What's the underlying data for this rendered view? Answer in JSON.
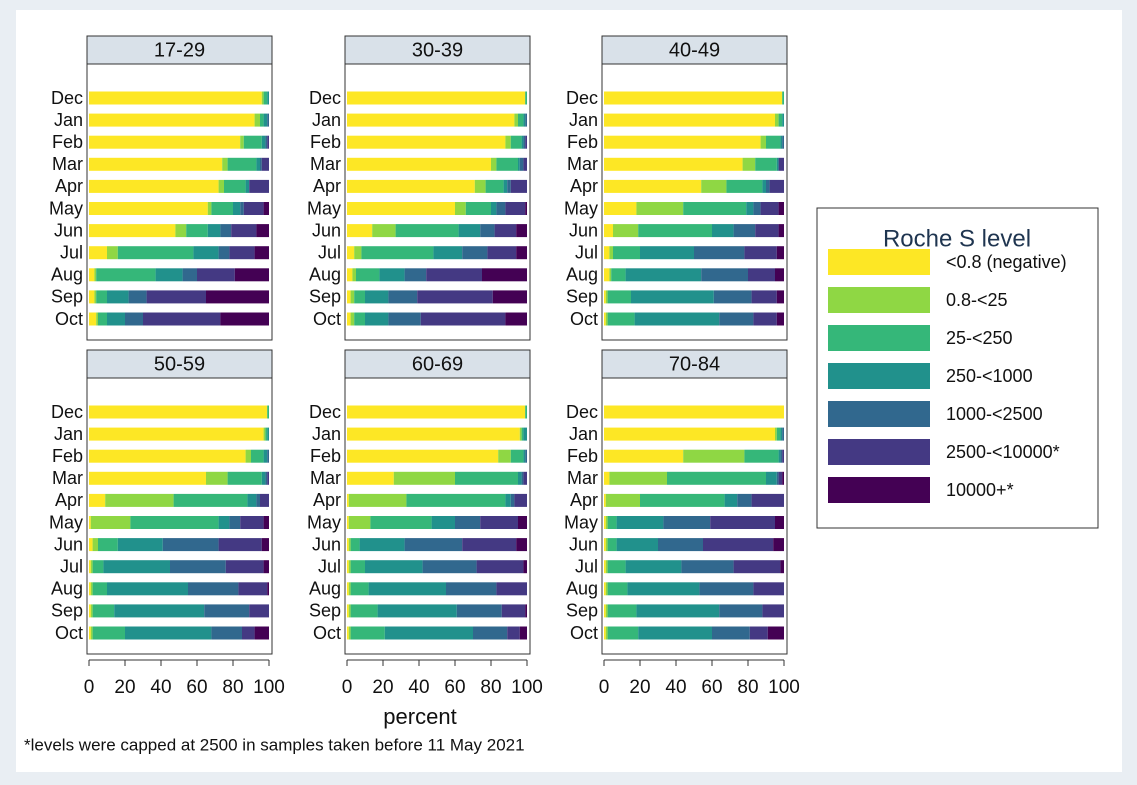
{
  "chart_data": {
    "type": "bar",
    "orientation": "horizontal",
    "stacked": true,
    "xlabel": "percent",
    "note": "*levels were capped at 2500 in samples taken before 11 May 2021",
    "legend": {
      "title": "Roche S level",
      "position": "right"
    },
    "categories": [
      "Dec",
      "Jan",
      "Feb",
      "Mar",
      "Apr",
      "May",
      "Jun",
      "Jul",
      "Aug",
      "Sep",
      "Oct"
    ],
    "xlim": [
      0,
      100
    ],
    "xticks": [
      0,
      20,
      40,
      60,
      80,
      100
    ],
    "series": [
      {
        "name": "<0.8 (negative)",
        "color": "#fde725"
      },
      {
        "name": "0.8-<25",
        "color": "#8fd744"
      },
      {
        "name": "25-<250",
        "color": "#35b779"
      },
      {
        "name": "250-<1000",
        "color": "#21918c"
      },
      {
        "name": "1000-<2500",
        "color": "#31688e"
      },
      {
        "name": "2500-<10000*",
        "color": "#443983"
      },
      {
        "name": "10000+*",
        "color": "#440154"
      }
    ],
    "panels": [
      {
        "title": "17-29",
        "values": [
          [
            96,
            92,
            84,
            74,
            72,
            66,
            48,
            10,
            3,
            3,
            4
          ],
          [
            1,
            3,
            2,
            3,
            3,
            2,
            6,
            6,
            1,
            1,
            1
          ],
          [
            2,
            2,
            10,
            16,
            12,
            12,
            12,
            42,
            33,
            6,
            5
          ],
          [
            1,
            2,
            2,
            2,
            2,
            4,
            7,
            14,
            15,
            12,
            10
          ],
          [
            0,
            1,
            1,
            1,
            0,
            2,
            6,
            6,
            8,
            10,
            10
          ],
          [
            0,
            0,
            1,
            4,
            11,
            11,
            14,
            14,
            21,
            33,
            43
          ],
          [
            0,
            0,
            0,
            0,
            0,
            3,
            7,
            8,
            19,
            35,
            27
          ]
        ]
      },
      {
        "title": "30-39",
        "values": [
          [
            99,
            93,
            88,
            80,
            71,
            60,
            14,
            4,
            3,
            2,
            2
          ],
          [
            0,
            2,
            3,
            3,
            6,
            6,
            13,
            4,
            2,
            2,
            2
          ],
          [
            1,
            3,
            6,
            12,
            10,
            14,
            35,
            40,
            13,
            6,
            6
          ],
          [
            0,
            1,
            1,
            1,
            2,
            3,
            12,
            16,
            14,
            13,
            13
          ],
          [
            0,
            1,
            1,
            2,
            2,
            5,
            8,
            14,
            12,
            16,
            18
          ],
          [
            0,
            0,
            1,
            2,
            9,
            11,
            12,
            16,
            31,
            42,
            47
          ],
          [
            0,
            0,
            0,
            0,
            0,
            1,
            6,
            6,
            25,
            19,
            12
          ]
        ]
      },
      {
        "title": "40-49",
        "values": [
          [
            99,
            95,
            87,
            77,
            54,
            18,
            5,
            3,
            3,
            1,
            1
          ],
          [
            0,
            2,
            3,
            7,
            14,
            26,
            14,
            2,
            1,
            1,
            1
          ],
          [
            1,
            2,
            8,
            12,
            20,
            35,
            41,
            15,
            8,
            13,
            15
          ],
          [
            0,
            1,
            1,
            1,
            2,
            4,
            12,
            30,
            42,
            46,
            47
          ],
          [
            0,
            0,
            1,
            0,
            2,
            4,
            12,
            28,
            26,
            21,
            19
          ],
          [
            0,
            0,
            0,
            3,
            8,
            10,
            13,
            18,
            15,
            14,
            13
          ],
          [
            0,
            0,
            0,
            0,
            0,
            3,
            3,
            4,
            5,
            4,
            4
          ]
        ]
      },
      {
        "title": "50-59",
        "values": [
          [
            99,
            97,
            87,
            65,
            9,
            1,
            2,
            1,
            1,
            1,
            1
          ],
          [
            0,
            1,
            3,
            12,
            38,
            22,
            3,
            1,
            1,
            1,
            1
          ],
          [
            1,
            1,
            7,
            19,
            41,
            49,
            11,
            6,
            8,
            12,
            18
          ],
          [
            0,
            1,
            2,
            2,
            5,
            6,
            25,
            37,
            45,
            50,
            48
          ],
          [
            0,
            0,
            1,
            1,
            2,
            6,
            31,
            31,
            28,
            25,
            17
          ],
          [
            0,
            0,
            0,
            1,
            5,
            13,
            24,
            21,
            16,
            11,
            7
          ],
          [
            0,
            0,
            0,
            0,
            0,
            3,
            4,
            3,
            1,
            0,
            8
          ]
        ]
      },
      {
        "title": "60-69",
        "values": [
          [
            99,
            96,
            84,
            26,
            1,
            1,
            1,
            1,
            1,
            1,
            1
          ],
          [
            0,
            1,
            7,
            34,
            32,
            12,
            1,
            1,
            1,
            1,
            1
          ],
          [
            1,
            1,
            7,
            35,
            55,
            34,
            5,
            8,
            10,
            15,
            19
          ],
          [
            0,
            2,
            1,
            2,
            3,
            13,
            25,
            32,
            43,
            44,
            49
          ],
          [
            0,
            0,
            1,
            1,
            2,
            14,
            32,
            30,
            28,
            25,
            19
          ],
          [
            0,
            0,
            0,
            2,
            7,
            21,
            30,
            26,
            17,
            13,
            7
          ],
          [
            0,
            0,
            0,
            0,
            0,
            5,
            6,
            2,
            0,
            1,
            4
          ]
        ]
      },
      {
        "title": "70-84",
        "values": [
          [
            100,
            95,
            44,
            3,
            1,
            1,
            1,
            1,
            1,
            1,
            1
          ],
          [
            0,
            1,
            34,
            32,
            19,
            1,
            1,
            1,
            1,
            1,
            1
          ],
          [
            0,
            2,
            19,
            55,
            47,
            5,
            5,
            10,
            11,
            16,
            17
          ],
          [
            0,
            1,
            1,
            6,
            7,
            26,
            23,
            31,
            40,
            46,
            41
          ],
          [
            0,
            1,
            1,
            1,
            8,
            26,
            25,
            29,
            30,
            24,
            21
          ],
          [
            0,
            0,
            1,
            2,
            18,
            36,
            39,
            26,
            17,
            12,
            10
          ],
          [
            0,
            0,
            0,
            1,
            0,
            5,
            6,
            2,
            0,
            0,
            9
          ]
        ]
      }
    ]
  }
}
